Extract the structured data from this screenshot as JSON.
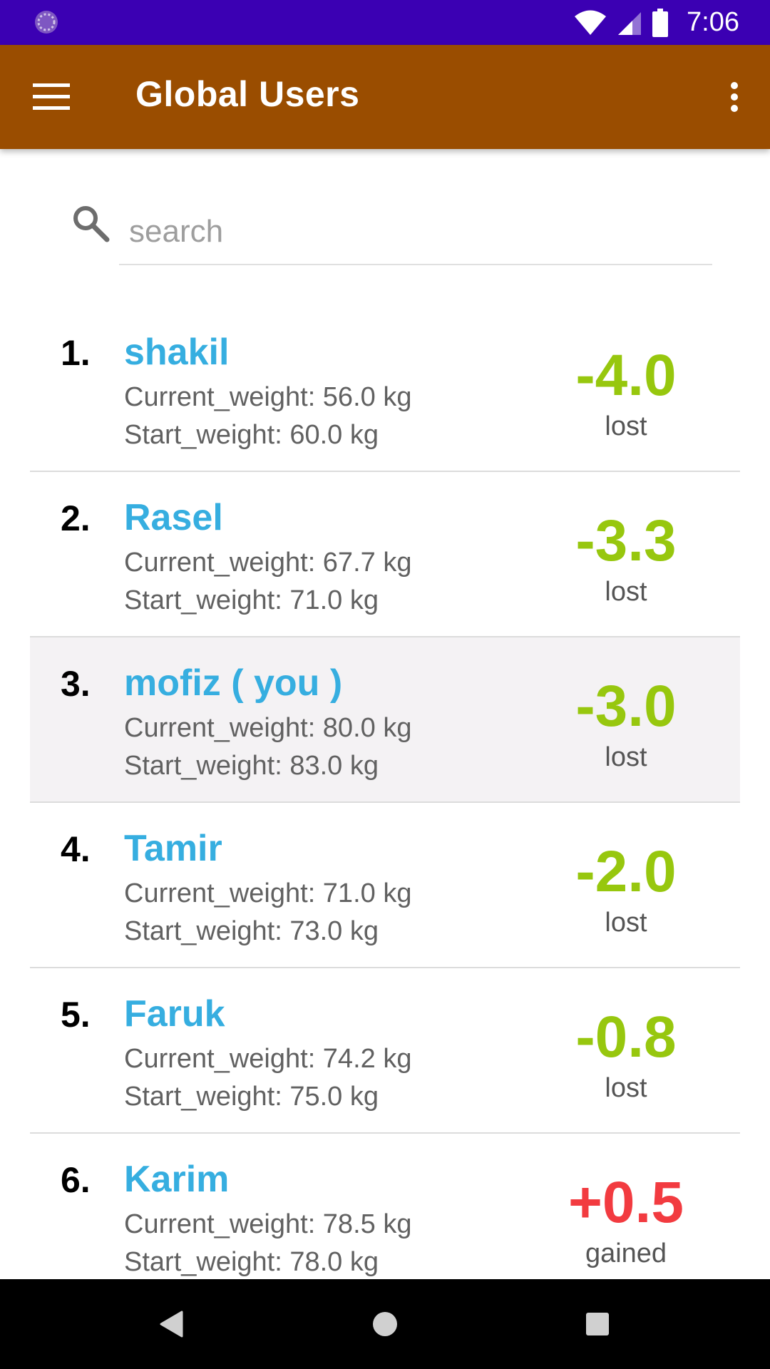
{
  "status_bar": {
    "time": "7:06",
    "icons": [
      "notification-icon",
      "wifi-icon",
      "signal-icon",
      "battery-icon"
    ]
  },
  "app_bar": {
    "title": "Global Users",
    "icons": [
      "menu-icon",
      "overflow-icon"
    ],
    "color": "#9a4d00"
  },
  "search": {
    "placeholder": "search",
    "value": ""
  },
  "users": [
    {
      "rank": "1.",
      "name": "shakil",
      "current_weight": "Current_weight: 56.0 kg",
      "start_weight": "Start_weight: 60.0 kg",
      "delta": "-4.0",
      "delta_label": "lost"
    },
    {
      "rank": "2.",
      "name": "Rasel",
      "current_weight": "Current_weight: 67.7 kg",
      "start_weight": "Start_weight: 71.0 kg",
      "delta": "-3.3",
      "delta_label": "lost"
    },
    {
      "rank": "3.",
      "name": "mofiz ( you )",
      "current_weight": "Current_weight: 80.0 kg",
      "start_weight": "Start_weight: 83.0 kg",
      "delta": "-3.0",
      "delta_label": "lost"
    },
    {
      "rank": "4.",
      "name": "Tamir",
      "current_weight": "Current_weight: 71.0 kg",
      "start_weight": "Start_weight: 73.0 kg",
      "delta": "-2.0",
      "delta_label": "lost"
    },
    {
      "rank": "5.",
      "name": "Faruk",
      "current_weight": "Current_weight: 74.2 kg",
      "start_weight": "Start_weight: 75.0 kg",
      "delta": "-0.8",
      "delta_label": "lost"
    },
    {
      "rank": "6.",
      "name": "Karim",
      "current_weight": "Current_weight: 78.5 kg",
      "start_weight": "Start_weight: 78.0 kg",
      "delta": "+0.5",
      "delta_label": "gained"
    }
  ],
  "colors": {
    "lost": "#97c70e",
    "gained": "#f23b40",
    "name": "#36aee0",
    "status_bar": "#3b00b3"
  },
  "nav_bar": {
    "icons": [
      "back-icon",
      "home-icon",
      "recents-icon"
    ]
  }
}
